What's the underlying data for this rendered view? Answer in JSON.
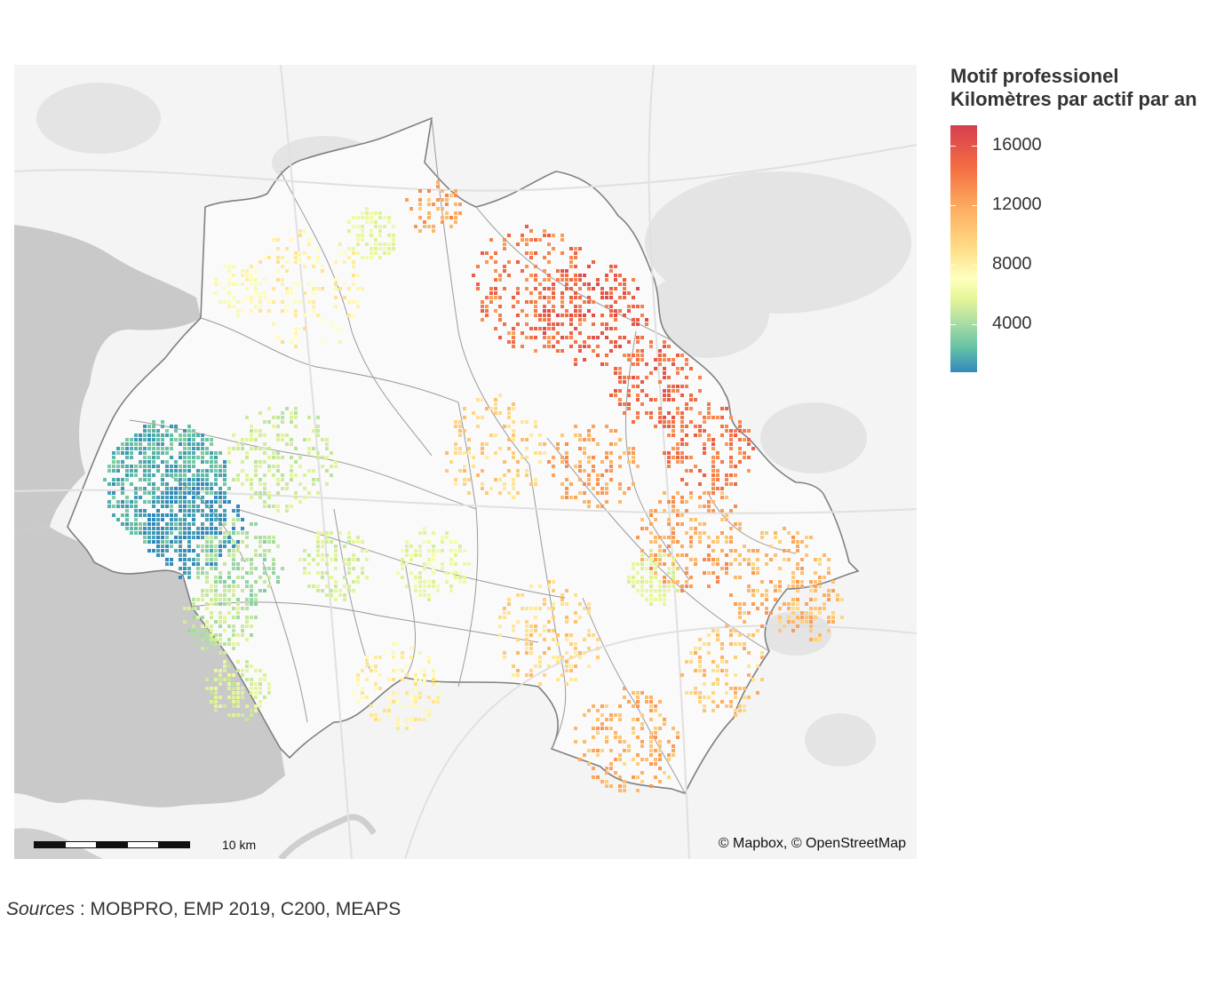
{
  "legend": {
    "title_line1": "Motif professionel",
    "title_line2": "Kilomètres par actif par an",
    "ticks": [
      {
        "label": "16000",
        "value": 16000
      },
      {
        "label": "12000",
        "value": 12000
      },
      {
        "label": "8000",
        "value": 8000
      },
      {
        "label": "4000",
        "value": 4000
      }
    ],
    "range": [
      800,
      17400
    ],
    "palette": [
      "#3288bd",
      "#66c2a5",
      "#abdda4",
      "#e6f598",
      "#ffffbf",
      "#fee08b",
      "#fdae61",
      "#f46d43",
      "#d53e4f"
    ]
  },
  "map": {
    "attribution": "© Mapbox, © OpenStreetMap",
    "scale_label": "10 km",
    "water_color": "#c8c8c8",
    "land_color": "#f5f5f5",
    "boundary_color": "#777777"
  },
  "sources": {
    "label": "Sources",
    "text": " : MOBPRO, EMP 2019, C200, MEAPS"
  }
}
